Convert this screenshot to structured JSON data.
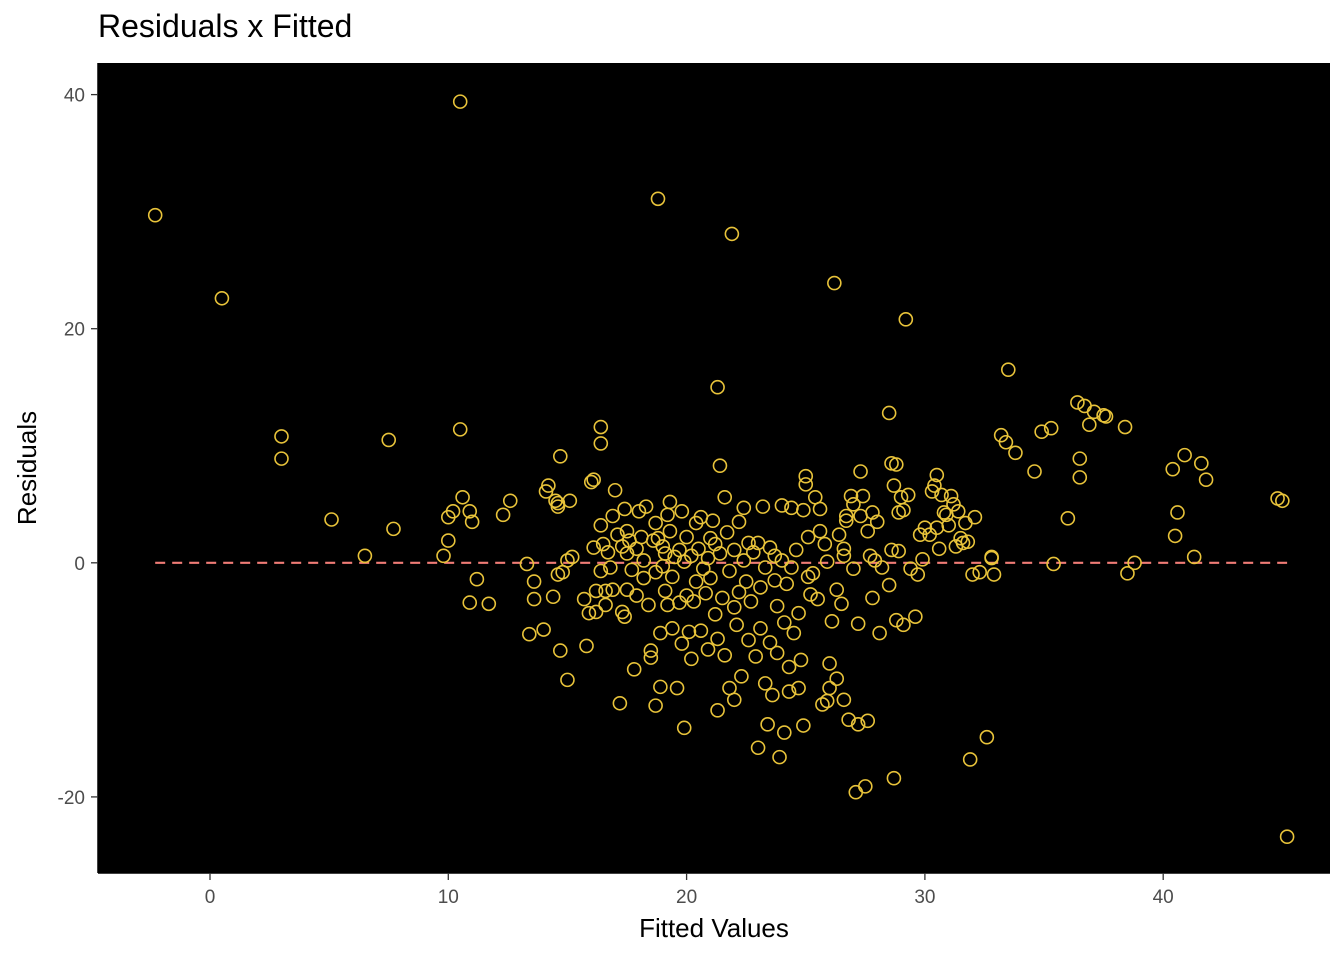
{
  "chart_data": {
    "type": "scatter",
    "title": "Residuals x Fitted",
    "xlabel": "Fitted Values",
    "ylabel": "Residuals",
    "xlim": [
      -4.7,
      47.0
    ],
    "ylim": [
      -26.5,
      42.7
    ],
    "xticks": [
      0,
      10,
      20,
      30,
      40
    ],
    "yticks": [
      -20,
      0,
      20,
      40
    ],
    "xtick_labels": [
      "0",
      "10",
      "20",
      "30",
      "40"
    ],
    "ytick_labels": [
      "-20",
      "0",
      "20",
      "40"
    ],
    "grid": false,
    "background": "#000000",
    "point_color": "#e8c33a",
    "reference_line": {
      "y": 0,
      "x_range": [
        -2.3,
        45.2
      ],
      "style": "dashed",
      "color": "#f07c76"
    },
    "points": [
      [
        -2.3,
        29.7
      ],
      [
        0.5,
        22.6
      ],
      [
        3.0,
        10.8
      ],
      [
        3.0,
        8.9
      ],
      [
        5.1,
        3.7
      ],
      [
        6.5,
        0.6
      ],
      [
        7.5,
        10.5
      ],
      [
        7.7,
        2.9
      ],
      [
        9.8,
        0.6
      ],
      [
        10.0,
        1.9
      ],
      [
        10.0,
        3.9
      ],
      [
        10.2,
        4.4
      ],
      [
        10.5,
        39.4
      ],
      [
        10.5,
        11.4
      ],
      [
        10.6,
        5.6
      ],
      [
        10.9,
        4.4
      ],
      [
        10.9,
        -3.4
      ],
      [
        11.0,
        3.5
      ],
      [
        11.2,
        -1.4
      ],
      [
        11.7,
        -3.5
      ],
      [
        12.3,
        4.1
      ],
      [
        12.6,
        5.3
      ],
      [
        13.3,
        -0.1
      ],
      [
        13.4,
        -6.1
      ],
      [
        13.6,
        -1.6
      ],
      [
        13.6,
        -3.1
      ],
      [
        14.0,
        -5.7
      ],
      [
        14.1,
        6.1
      ],
      [
        14.2,
        6.6
      ],
      [
        14.4,
        -2.9
      ],
      [
        14.5,
        5.3
      ],
      [
        14.6,
        4.8
      ],
      [
        14.6,
        5.1
      ],
      [
        14.7,
        9.1
      ],
      [
        14.7,
        -7.5
      ],
      [
        14.6,
        -1.0
      ],
      [
        14.8,
        -0.8
      ],
      [
        15.0,
        0.2
      ],
      [
        15.1,
        5.3
      ],
      [
        15.2,
        0.5
      ],
      [
        15.0,
        -10.0
      ],
      [
        15.7,
        -3.1
      ],
      [
        15.8,
        -7.1
      ],
      [
        15.9,
        -4.3
      ],
      [
        16.0,
        6.9
      ],
      [
        16.1,
        7.1
      ],
      [
        16.1,
        1.3
      ],
      [
        16.2,
        -2.4
      ],
      [
        16.2,
        -4.2
      ],
      [
        16.4,
        3.2
      ],
      [
        16.4,
        11.6
      ],
      [
        16.4,
        10.2
      ],
      [
        16.4,
        -0.7
      ],
      [
        16.5,
        1.6
      ],
      [
        16.6,
        -2.4
      ],
      [
        16.6,
        -3.6
      ],
      [
        16.7,
        0.9
      ],
      [
        16.8,
        -0.4
      ],
      [
        16.9,
        4.0
      ],
      [
        16.9,
        -2.3
      ],
      [
        17.0,
        6.2
      ],
      [
        17.1,
        2.4
      ],
      [
        17.2,
        -12.0
      ],
      [
        17.3,
        1.4
      ],
      [
        17.3,
        -4.2
      ],
      [
        17.4,
        4.6
      ],
      [
        17.4,
        -4.6
      ],
      [
        17.5,
        2.7
      ],
      [
        17.5,
        0.8
      ],
      [
        17.5,
        -2.3
      ],
      [
        17.6,
        1.9
      ],
      [
        17.7,
        -0.6
      ],
      [
        17.8,
        -9.1
      ],
      [
        17.9,
        1.2
      ],
      [
        17.9,
        -2.8
      ],
      [
        18.0,
        4.4
      ],
      [
        18.1,
        2.2
      ],
      [
        18.2,
        0.2
      ],
      [
        18.2,
        -1.3
      ],
      [
        18.3,
        4.8
      ],
      [
        18.4,
        -3.6
      ],
      [
        18.5,
        -7.5
      ],
      [
        18.5,
        -8.1
      ],
      [
        18.6,
        1.9
      ],
      [
        18.7,
        3.4
      ],
      [
        18.7,
        -0.8
      ],
      [
        18.7,
        -12.2
      ],
      [
        18.8,
        2.1
      ],
      [
        18.8,
        31.1
      ],
      [
        18.9,
        -6.0
      ],
      [
        18.9,
        -10.6
      ],
      [
        19.0,
        1.4
      ],
      [
        19.0,
        -0.3
      ],
      [
        19.1,
        0.8
      ],
      [
        19.1,
        -2.4
      ],
      [
        19.2,
        4.1
      ],
      [
        19.2,
        -3.6
      ],
      [
        19.3,
        5.2
      ],
      [
        19.3,
        2.7
      ],
      [
        19.4,
        -5.6
      ],
      [
        19.4,
        -1.2
      ],
      [
        19.5,
        0.5
      ],
      [
        19.6,
        -10.7
      ],
      [
        19.7,
        1.1
      ],
      [
        19.7,
        -3.4
      ],
      [
        19.8,
        -6.9
      ],
      [
        19.8,
        4.4
      ],
      [
        19.9,
        0.1
      ],
      [
        19.9,
        -14.1
      ],
      [
        20.0,
        2.2
      ],
      [
        20.0,
        -2.8
      ],
      [
        20.1,
        -5.9
      ],
      [
        20.2,
        0.6
      ],
      [
        20.2,
        -8.2
      ],
      [
        20.3,
        -3.3
      ],
      [
        20.4,
        3.4
      ],
      [
        20.4,
        -1.6
      ],
      [
        20.5,
        1.2
      ],
      [
        20.6,
        -5.8
      ],
      [
        20.6,
        3.9
      ],
      [
        20.7,
        -0.5
      ],
      [
        20.8,
        -2.6
      ],
      [
        20.9,
        0.4
      ],
      [
        20.9,
        -7.4
      ],
      [
        21.0,
        2.1
      ],
      [
        21.0,
        -1.3
      ],
      [
        21.1,
        3.6
      ],
      [
        21.2,
        -4.4
      ],
      [
        21.2,
        1.6
      ],
      [
        21.3,
        15.0
      ],
      [
        21.3,
        -6.5
      ],
      [
        21.3,
        -12.6
      ],
      [
        21.4,
        8.3
      ],
      [
        21.4,
        0.8
      ],
      [
        21.5,
        -3.0
      ],
      [
        21.6,
        5.6
      ],
      [
        21.6,
        -7.9
      ],
      [
        21.7,
        2.6
      ],
      [
        21.8,
        -0.7
      ],
      [
        21.8,
        -10.7
      ],
      [
        21.9,
        28.1
      ],
      [
        22.0,
        1.1
      ],
      [
        22.0,
        -3.8
      ],
      [
        22.0,
        -11.7
      ],
      [
        22.1,
        -5.3
      ],
      [
        22.2,
        -2.5
      ],
      [
        22.2,
        3.5
      ],
      [
        22.3,
        -9.7
      ],
      [
        22.4,
        0.2
      ],
      [
        22.4,
        4.7
      ],
      [
        22.5,
        -1.6
      ],
      [
        22.6,
        -6.6
      ],
      [
        22.6,
        1.7
      ],
      [
        22.7,
        -3.3
      ],
      [
        22.8,
        0.9
      ],
      [
        22.9,
        -8.0
      ],
      [
        23.0,
        1.7
      ],
      [
        23.0,
        -15.8
      ],
      [
        23.1,
        -2.1
      ],
      [
        23.1,
        -5.6
      ],
      [
        23.2,
        4.8
      ],
      [
        23.3,
        -0.4
      ],
      [
        23.3,
        -10.3
      ],
      [
        23.4,
        -13.8
      ],
      [
        23.5,
        1.3
      ],
      [
        23.5,
        -6.8
      ],
      [
        23.6,
        -11.3
      ],
      [
        23.7,
        0.6
      ],
      [
        23.7,
        -1.5
      ],
      [
        23.8,
        -3.7
      ],
      [
        23.8,
        -7.7
      ],
      [
        23.9,
        -16.6
      ],
      [
        24.0,
        4.9
      ],
      [
        24.0,
        0.2
      ],
      [
        24.1,
        -5.1
      ],
      [
        24.1,
        -14.5
      ],
      [
        24.2,
        -1.8
      ],
      [
        24.3,
        -8.9
      ],
      [
        24.3,
        -11.0
      ],
      [
        24.4,
        4.7
      ],
      [
        24.4,
        -0.4
      ],
      [
        24.5,
        -6.0
      ],
      [
        24.6,
        1.1
      ],
      [
        24.7,
        -4.3
      ],
      [
        24.7,
        -10.7
      ],
      [
        24.8,
        -8.3
      ],
      [
        24.9,
        -13.9
      ],
      [
        24.9,
        4.5
      ],
      [
        25.0,
        6.7
      ],
      [
        25.0,
        7.4
      ],
      [
        25.1,
        2.2
      ],
      [
        25.1,
        -1.2
      ],
      [
        25.2,
        -2.7
      ],
      [
        25.3,
        -0.9
      ],
      [
        25.4,
        5.6
      ],
      [
        25.5,
        -3.1
      ],
      [
        25.6,
        2.7
      ],
      [
        25.6,
        4.6
      ],
      [
        25.7,
        -12.1
      ],
      [
        25.8,
        1.6
      ],
      [
        25.9,
        0.1
      ],
      [
        25.9,
        -11.8
      ],
      [
        26.0,
        -8.6
      ],
      [
        26.0,
        -10.7
      ],
      [
        26.1,
        -5.0
      ],
      [
        26.2,
        23.9
      ],
      [
        26.3,
        -2.3
      ],
      [
        26.3,
        -9.9
      ],
      [
        26.4,
        2.4
      ],
      [
        26.5,
        -3.5
      ],
      [
        26.6,
        -11.7
      ],
      [
        26.6,
        1.2
      ],
      [
        26.6,
        0.6
      ],
      [
        26.7,
        3.6
      ],
      [
        26.7,
        4.0
      ],
      [
        26.8,
        -13.4
      ],
      [
        26.9,
        5.7
      ],
      [
        27.0,
        -0.5
      ],
      [
        27.0,
        5.0
      ],
      [
        27.1,
        -19.6
      ],
      [
        27.2,
        -13.8
      ],
      [
        27.2,
        -5.2
      ],
      [
        27.3,
        4.0
      ],
      [
        27.3,
        7.8
      ],
      [
        27.4,
        5.7
      ],
      [
        27.5,
        -19.1
      ],
      [
        27.6,
        -13.5
      ],
      [
        27.6,
        2.7
      ],
      [
        27.7,
        0.6
      ],
      [
        27.8,
        -3.0
      ],
      [
        27.8,
        4.3
      ],
      [
        27.9,
        0.2
      ],
      [
        28.0,
        3.5
      ],
      [
        28.1,
        -6.0
      ],
      [
        28.2,
        -0.4
      ],
      [
        28.5,
        -1.9
      ],
      [
        28.5,
        12.8
      ],
      [
        28.6,
        8.5
      ],
      [
        28.6,
        1.1
      ],
      [
        28.7,
        -18.4
      ],
      [
        28.7,
        6.6
      ],
      [
        28.8,
        -4.9
      ],
      [
        28.8,
        8.4
      ],
      [
        28.9,
        1.0
      ],
      [
        28.9,
        4.3
      ],
      [
        29.0,
        5.6
      ],
      [
        29.1,
        4.5
      ],
      [
        29.1,
        -5.3
      ],
      [
        29.2,
        20.8
      ],
      [
        29.3,
        5.8
      ],
      [
        29.4,
        -0.5
      ],
      [
        29.6,
        -4.6
      ],
      [
        29.7,
        -1.0
      ],
      [
        29.8,
        2.4
      ],
      [
        29.9,
        0.3
      ],
      [
        30.0,
        3.0
      ],
      [
        30.2,
        2.4
      ],
      [
        30.3,
        6.1
      ],
      [
        30.4,
        6.6
      ],
      [
        30.5,
        7.5
      ],
      [
        30.5,
        3.0
      ],
      [
        30.6,
        1.2
      ],
      [
        30.7,
        5.8
      ],
      [
        30.8,
        4.3
      ],
      [
        30.9,
        4.1
      ],
      [
        31.0,
        3.2
      ],
      [
        31.1,
        5.7
      ],
      [
        31.2,
        5.0
      ],
      [
        31.3,
        1.4
      ],
      [
        31.4,
        4.4
      ],
      [
        31.5,
        2.1
      ],
      [
        31.6,
        1.7
      ],
      [
        31.7,
        3.4
      ],
      [
        31.8,
        1.8
      ],
      [
        31.9,
        -16.8
      ],
      [
        32.0,
        -1.0
      ],
      [
        32.1,
        3.9
      ],
      [
        32.3,
        -0.8
      ],
      [
        32.6,
        -14.9
      ],
      [
        32.8,
        0.4
      ],
      [
        32.8,
        0.5
      ],
      [
        32.9,
        -1.0
      ],
      [
        33.2,
        10.9
      ],
      [
        33.4,
        10.3
      ],
      [
        33.5,
        16.5
      ],
      [
        33.8,
        9.4
      ],
      [
        34.6,
        7.8
      ],
      [
        34.9,
        11.2
      ],
      [
        35.3,
        11.5
      ],
      [
        35.4,
        -0.1
      ],
      [
        36.0,
        3.8
      ],
      [
        36.4,
        13.7
      ],
      [
        36.5,
        8.9
      ],
      [
        36.5,
        7.3
      ],
      [
        36.7,
        13.4
      ],
      [
        36.9,
        11.8
      ],
      [
        37.1,
        12.9
      ],
      [
        37.5,
        12.6
      ],
      [
        37.6,
        12.5
      ],
      [
        38.4,
        11.6
      ],
      [
        38.5,
        -0.9
      ],
      [
        38.8,
        0.0
      ],
      [
        40.4,
        8.0
      ],
      [
        40.5,
        2.3
      ],
      [
        40.6,
        4.3
      ],
      [
        40.9,
        9.2
      ],
      [
        41.3,
        0.5
      ],
      [
        41.6,
        8.5
      ],
      [
        41.8,
        7.1
      ],
      [
        44.8,
        5.5
      ],
      [
        45.0,
        5.3
      ],
      [
        45.2,
        -23.4
      ]
    ]
  }
}
